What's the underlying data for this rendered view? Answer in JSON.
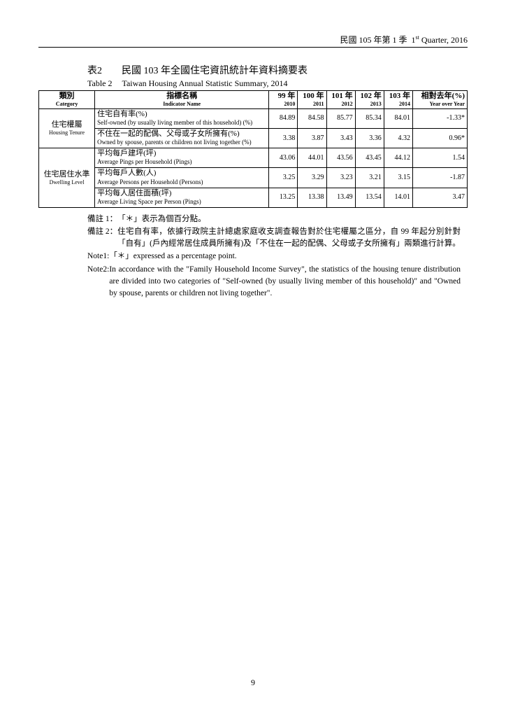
{
  "header": {
    "text_zh": "民國 105 年第 1 季",
    "text_en_pre": "1",
    "text_en_sup": "st",
    "text_en_post": " Quarter, 2016"
  },
  "title": {
    "num_zh": "表2",
    "zh": "民國 103 年全國住宅資訊統計年資料摘要表",
    "num_en": "Table 2",
    "en": "Taiwan Housing Annual Statistic Summary, 2014"
  },
  "table": {
    "head": {
      "cat_zh": "類別",
      "cat_en": "Category",
      "ind_zh": "指標名稱",
      "ind_en": "Indicator Name",
      "y99_zh": "99 年",
      "y99_en": "2010",
      "y100_zh": "100 年",
      "y100_en": "2011",
      "y101_zh": "101 年",
      "y101_en": "2012",
      "y102_zh": "102 年",
      "y102_en": "2013",
      "y103_zh": "103 年",
      "y103_en": "2014",
      "yoy_zh": "相對去年(%)",
      "yoy_en": "Year over Year"
    },
    "cat1_zh": "住宅權屬",
    "cat1_en": "Housing Tenure",
    "cat2_zh": "住宅居住水準",
    "cat2_en": "Dwelling Level",
    "rows": [
      {
        "zh": "住宅自有率(%)",
        "en": "Self-owned (by usually living member of this household) (%)",
        "v": [
          "84.89",
          "84.58",
          "85.77",
          "85.34",
          "84.01",
          "-1.33*"
        ]
      },
      {
        "zh": "不住在一起的配偶、父母或子女所擁有(%)",
        "en": "Owned by spouse, parents or children not living together (%)",
        "v": [
          "3.38",
          "3.87",
          "3.43",
          "3.36",
          "4.32",
          "0.96*"
        ]
      },
      {
        "zh": "平均每戶建坪(坪)",
        "en": "Average Pings per Household (Pings)",
        "v": [
          "43.06",
          "44.01",
          "43.56",
          "43.45",
          "44.12",
          "1.54"
        ]
      },
      {
        "zh": "平均每戶人數(人)",
        "en": "Average Persons per Household (Persons)",
        "v": [
          "3.25",
          "3.29",
          "3.23",
          "3.21",
          "3.15",
          "-1.87"
        ]
      },
      {
        "zh": "平均每人居住面積(坪)",
        "en": "Average Living Space per Person (Pings)",
        "v": [
          "13.25",
          "13.38",
          "13.49",
          "13.54",
          "14.01",
          "3.47"
        ]
      }
    ]
  },
  "notes": {
    "n1_zh_label": "備註 1：",
    "n1_zh": "「＊」表示為個百分點。",
    "n2_zh_label": "備註 2：",
    "n2_zh": "住宅自有率，依據行政院主計總處家庭收支調查報告對於住宅權屬之區分，自 99 年起分別針對「自有」(戶內經常居住成員所擁有)及「不住在一起的配偶、父母或子女所擁有」兩類進行計算。",
    "n1_en_label": "Note1: ",
    "n1_en": "「＊」expressed as a percentage point.",
    "n2_en_label": "Note2: ",
    "n2_en": "In accordance with the \"Family Household Income Survey\", the statistics of the housing tenure distribution are divided into two categories of \"Self-owned (by usually living member of this household)\" and \"Owned by spouse, parents or children not living together\"."
  },
  "pagenum": "9"
}
